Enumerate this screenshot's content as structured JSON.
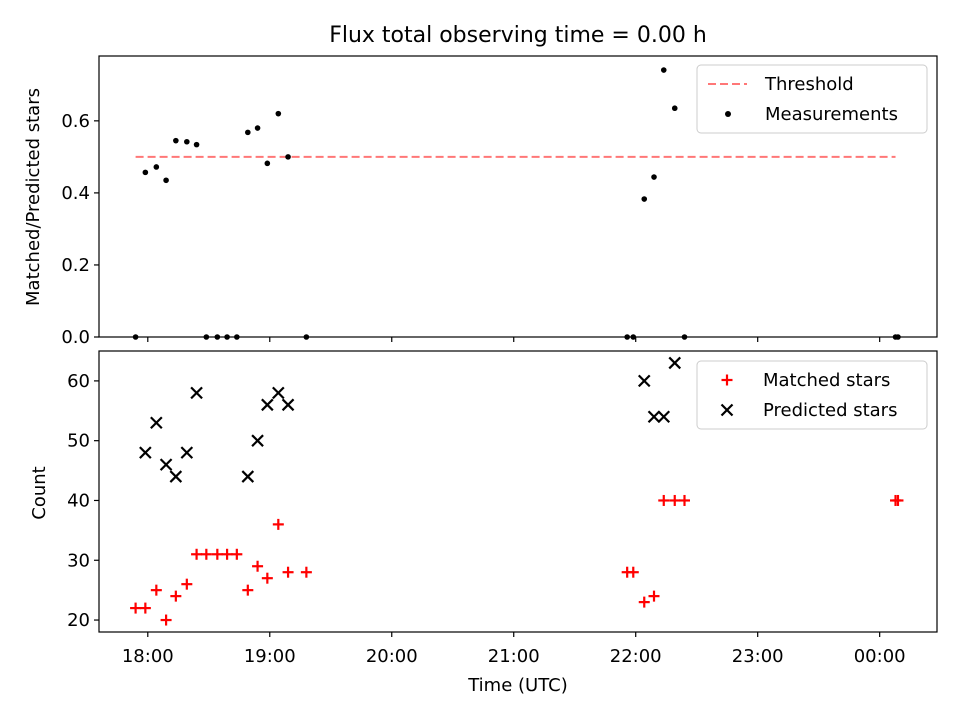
{
  "chart_data": {
    "type": "scatter",
    "title": "Flux total observing time = 0.00 h",
    "xlabel": "Time (UTC)",
    "x_tick_values": [
      18,
      19,
      20,
      21,
      22,
      23,
      24
    ],
    "x_tick_labels": [
      "18:00",
      "19:00",
      "20:00",
      "21:00",
      "22:00",
      "23:00",
      "00:00"
    ],
    "xlim": [
      17.6,
      24.47
    ],
    "panels": [
      {
        "id": "ratio",
        "ylabel": "Matched/Predicted stars",
        "ylim": [
          0,
          0.78
        ],
        "y_ticks": [
          0,
          0.2,
          0.4,
          0.6
        ],
        "y_tick_labels": [
          "0.0",
          "0.2",
          "0.4",
          "0.6"
        ],
        "legend_position": "top-right",
        "threshold": {
          "name": "Threshold",
          "value": 0.5,
          "x_range": [
            17.9,
            24.13
          ],
          "color": "#ff7777",
          "style": "dashed"
        },
        "series": [
          {
            "name": "Measurements",
            "marker": "dot",
            "color": "#000000",
            "points": [
              [
                17.9,
                0
              ],
              [
                17.98,
                0.457
              ],
              [
                18.07,
                0.472
              ],
              [
                18.15,
                0.435
              ],
              [
                18.23,
                0.545
              ],
              [
                18.32,
                0.542
              ],
              [
                18.4,
                0.534
              ],
              [
                18.48,
                0
              ],
              [
                18.57,
                0
              ],
              [
                18.65,
                0
              ],
              [
                18.73,
                0
              ],
              [
                18.82,
                0.568
              ],
              [
                18.9,
                0.58
              ],
              [
                18.98,
                0.482
              ],
              [
                19.07,
                0.62
              ],
              [
                19.15,
                0.5
              ],
              [
                19.3,
                0
              ],
              [
                21.93,
                0
              ],
              [
                21.98,
                0
              ],
              [
                22.07,
                0.383
              ],
              [
                22.15,
                0.444
              ],
              [
                22.23,
                0.741
              ],
              [
                22.32,
                0.635
              ],
              [
                22.4,
                0
              ],
              [
                24.13,
                0
              ],
              [
                24.15,
                0
              ]
            ]
          }
        ]
      },
      {
        "id": "counts",
        "ylabel": "Count",
        "ylim": [
          18,
          65
        ],
        "y_ticks": [
          20,
          30,
          40,
          50,
          60
        ],
        "y_tick_labels": [
          "20",
          "30",
          "40",
          "50",
          "60"
        ],
        "legend_position": "top-right",
        "series": [
          {
            "name": "Matched stars",
            "marker": "plus",
            "color": "#ff0000",
            "points": [
              [
                17.9,
                22
              ],
              [
                17.98,
                22
              ],
              [
                18.07,
                25
              ],
              [
                18.15,
                20
              ],
              [
                18.23,
                24
              ],
              [
                18.32,
                26
              ],
              [
                18.4,
                31
              ],
              [
                18.48,
                31
              ],
              [
                18.57,
                31
              ],
              [
                18.65,
                31
              ],
              [
                18.73,
                31
              ],
              [
                18.82,
                25
              ],
              [
                18.9,
                29
              ],
              [
                18.98,
                27
              ],
              [
                19.07,
                36
              ],
              [
                19.15,
                28
              ],
              [
                19.3,
                28
              ],
              [
                21.93,
                28
              ],
              [
                21.98,
                28
              ],
              [
                22.07,
                23
              ],
              [
                22.15,
                24
              ],
              [
                22.23,
                40
              ],
              [
                22.32,
                40
              ],
              [
                22.4,
                40
              ],
              [
                24.13,
                40
              ],
              [
                24.15,
                40
              ]
            ]
          },
          {
            "name": "Predicted stars",
            "marker": "x",
            "color": "#000000",
            "points": [
              [
                17.98,
                48
              ],
              [
                18.07,
                53
              ],
              [
                18.15,
                46
              ],
              [
                18.23,
                44
              ],
              [
                18.32,
                48
              ],
              [
                18.4,
                58
              ],
              [
                18.82,
                44
              ],
              [
                18.9,
                50
              ],
              [
                18.98,
                56
              ],
              [
                19.07,
                58
              ],
              [
                19.15,
                56
              ],
              [
                22.07,
                60
              ],
              [
                22.15,
                54
              ],
              [
                22.23,
                54
              ],
              [
                22.32,
                63
              ]
            ]
          }
        ]
      }
    ]
  }
}
